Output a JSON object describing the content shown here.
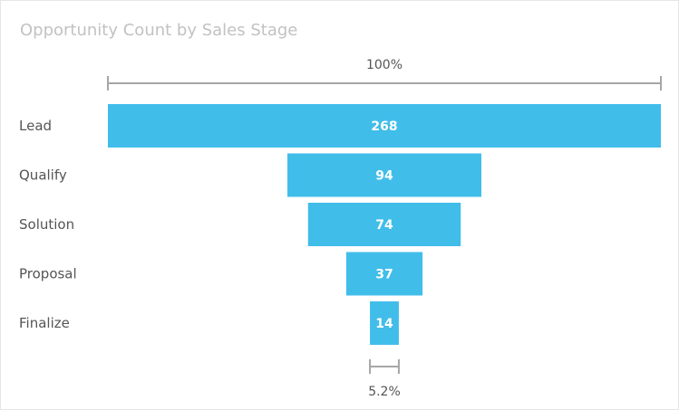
{
  "chart_data": {
    "type": "funnel",
    "title": "Opportunity Count by Sales Stage",
    "categories": [
      "Lead",
      "Qualify",
      "Solution",
      "Proposal",
      "Finalize"
    ],
    "values": [
      268,
      94,
      74,
      37,
      14
    ],
    "value_labels": [
      "268",
      "94",
      "74",
      "37",
      "14"
    ],
    "top_percent_label": "100%",
    "bottom_percent_label": "5.2%",
    "bar_color": "#41bdea",
    "axis_color": "#a6a6a6"
  }
}
